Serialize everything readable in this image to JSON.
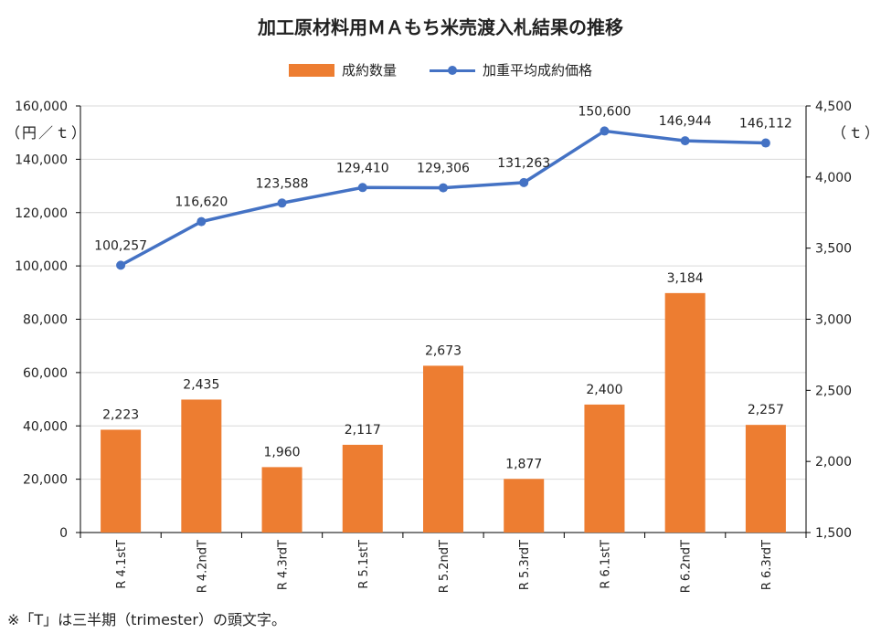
{
  "chart_data": {
    "type": "bar",
    "title": "加工原材料用ＭＡもち米売渡入札結果の推移",
    "categories": [
      "R 4.1stT",
      "R 4.2ndT",
      "R 4.3rdT",
      "R 5.1stT",
      "R 5.2ndT",
      "R 5.3rdT",
      "R 6.1stT",
      "R 6.2ndT",
      "R 6.3rdT"
    ],
    "series": [
      {
        "name": "成約数量",
        "type": "bar",
        "axis": "right",
        "color": "#ed7d31",
        "values": [
          2223,
          2435,
          1960,
          2117,
          2673,
          1877,
          2400,
          3184,
          2257
        ],
        "labels": [
          "2,223",
          "2,435",
          "1,960",
          "2,117",
          "2,673",
          "1,877",
          "2,400",
          "3,184",
          "2,257"
        ]
      },
      {
        "name": "加重平均成約価格",
        "type": "line",
        "axis": "left",
        "color": "#4472c4",
        "values": [
          100257,
          116620,
          123588,
          129410,
          129306,
          131263,
          150600,
          146944,
          146112
        ],
        "labels": [
          "100,257",
          "116,620",
          "123,588",
          "129,410",
          "129,306",
          "131,263",
          "150,600",
          "146,944",
          "146,112"
        ]
      }
    ],
    "y_left": {
      "unit_label": "（円／ｔ）",
      "ylim": [
        0,
        160000
      ],
      "ticks": [
        0,
        20000,
        40000,
        60000,
        80000,
        100000,
        120000,
        140000,
        160000
      ],
      "tick_labels": [
        "0",
        "20,000",
        "40,000",
        "60,000",
        "80,000",
        "100,000",
        "120,000",
        "140,000",
        "160,000"
      ]
    },
    "y_right": {
      "unit_label": "（ｔ）",
      "ylim": [
        1500,
        4500
      ],
      "ticks": [
        1500,
        2000,
        2500,
        3000,
        3500,
        4000,
        4500
      ],
      "tick_labels": [
        "1,500",
        "2,000",
        "2,500",
        "3,000",
        "3,500",
        "4,000",
        "4,500"
      ]
    },
    "legend_position": "top",
    "grid": true
  },
  "footnote": "※「T」は三半期（trimester）の頭文字。"
}
